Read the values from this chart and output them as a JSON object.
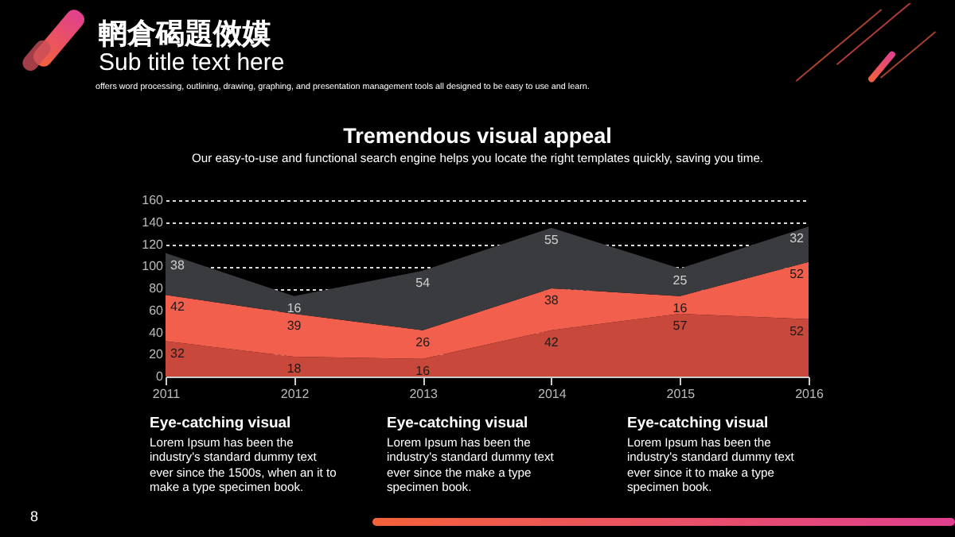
{
  "chart_data": {
    "type": "area",
    "title": "Tremendous visual appeal",
    "subtitle": "Our easy-to-use and functional search engine helps you locate the right templates quickly, saving you time.",
    "categories": [
      "2011",
      "2012",
      "2013",
      "2014",
      "2015",
      "2016"
    ],
    "stacked": true,
    "series": [
      {
        "color": "#c9483c",
        "values": [
          32,
          18,
          16,
          42,
          57,
          52
        ]
      },
      {
        "color": "#f25f4c",
        "values": [
          42,
          39,
          26,
          38,
          16,
          52
        ]
      },
      {
        "color": "#3a3b3f",
        "values": [
          38,
          16,
          54,
          55,
          25,
          32
        ]
      }
    ],
    "ylim": [
      0,
      160
    ],
    "yticks": [
      0,
      20,
      40,
      60,
      80,
      100,
      120,
      140,
      160
    ],
    "grid": "y",
    "data_labels": true,
    "annotations": [
      "輞倉碣題傚嫫",
      "Sub title text here",
      "offers word processing, outlining, drawing, graphing, and presentation management tools all designed to be easy to use and learn.",
      "Eye-catching visual",
      "Lorem Ipsum has been the industry's standard dummy text ever since the 1500s, when an it to make a type specimen book.",
      "Eye-catching visual",
      "Lorem Ipsum has been the industry's standard dummy text ever since the make a type specimen book.",
      "Eye-catching visual",
      "Lorem Ipsum has been the industry's standard dummy text ever since it to make a type specimen book.",
      "8"
    ]
  }
}
